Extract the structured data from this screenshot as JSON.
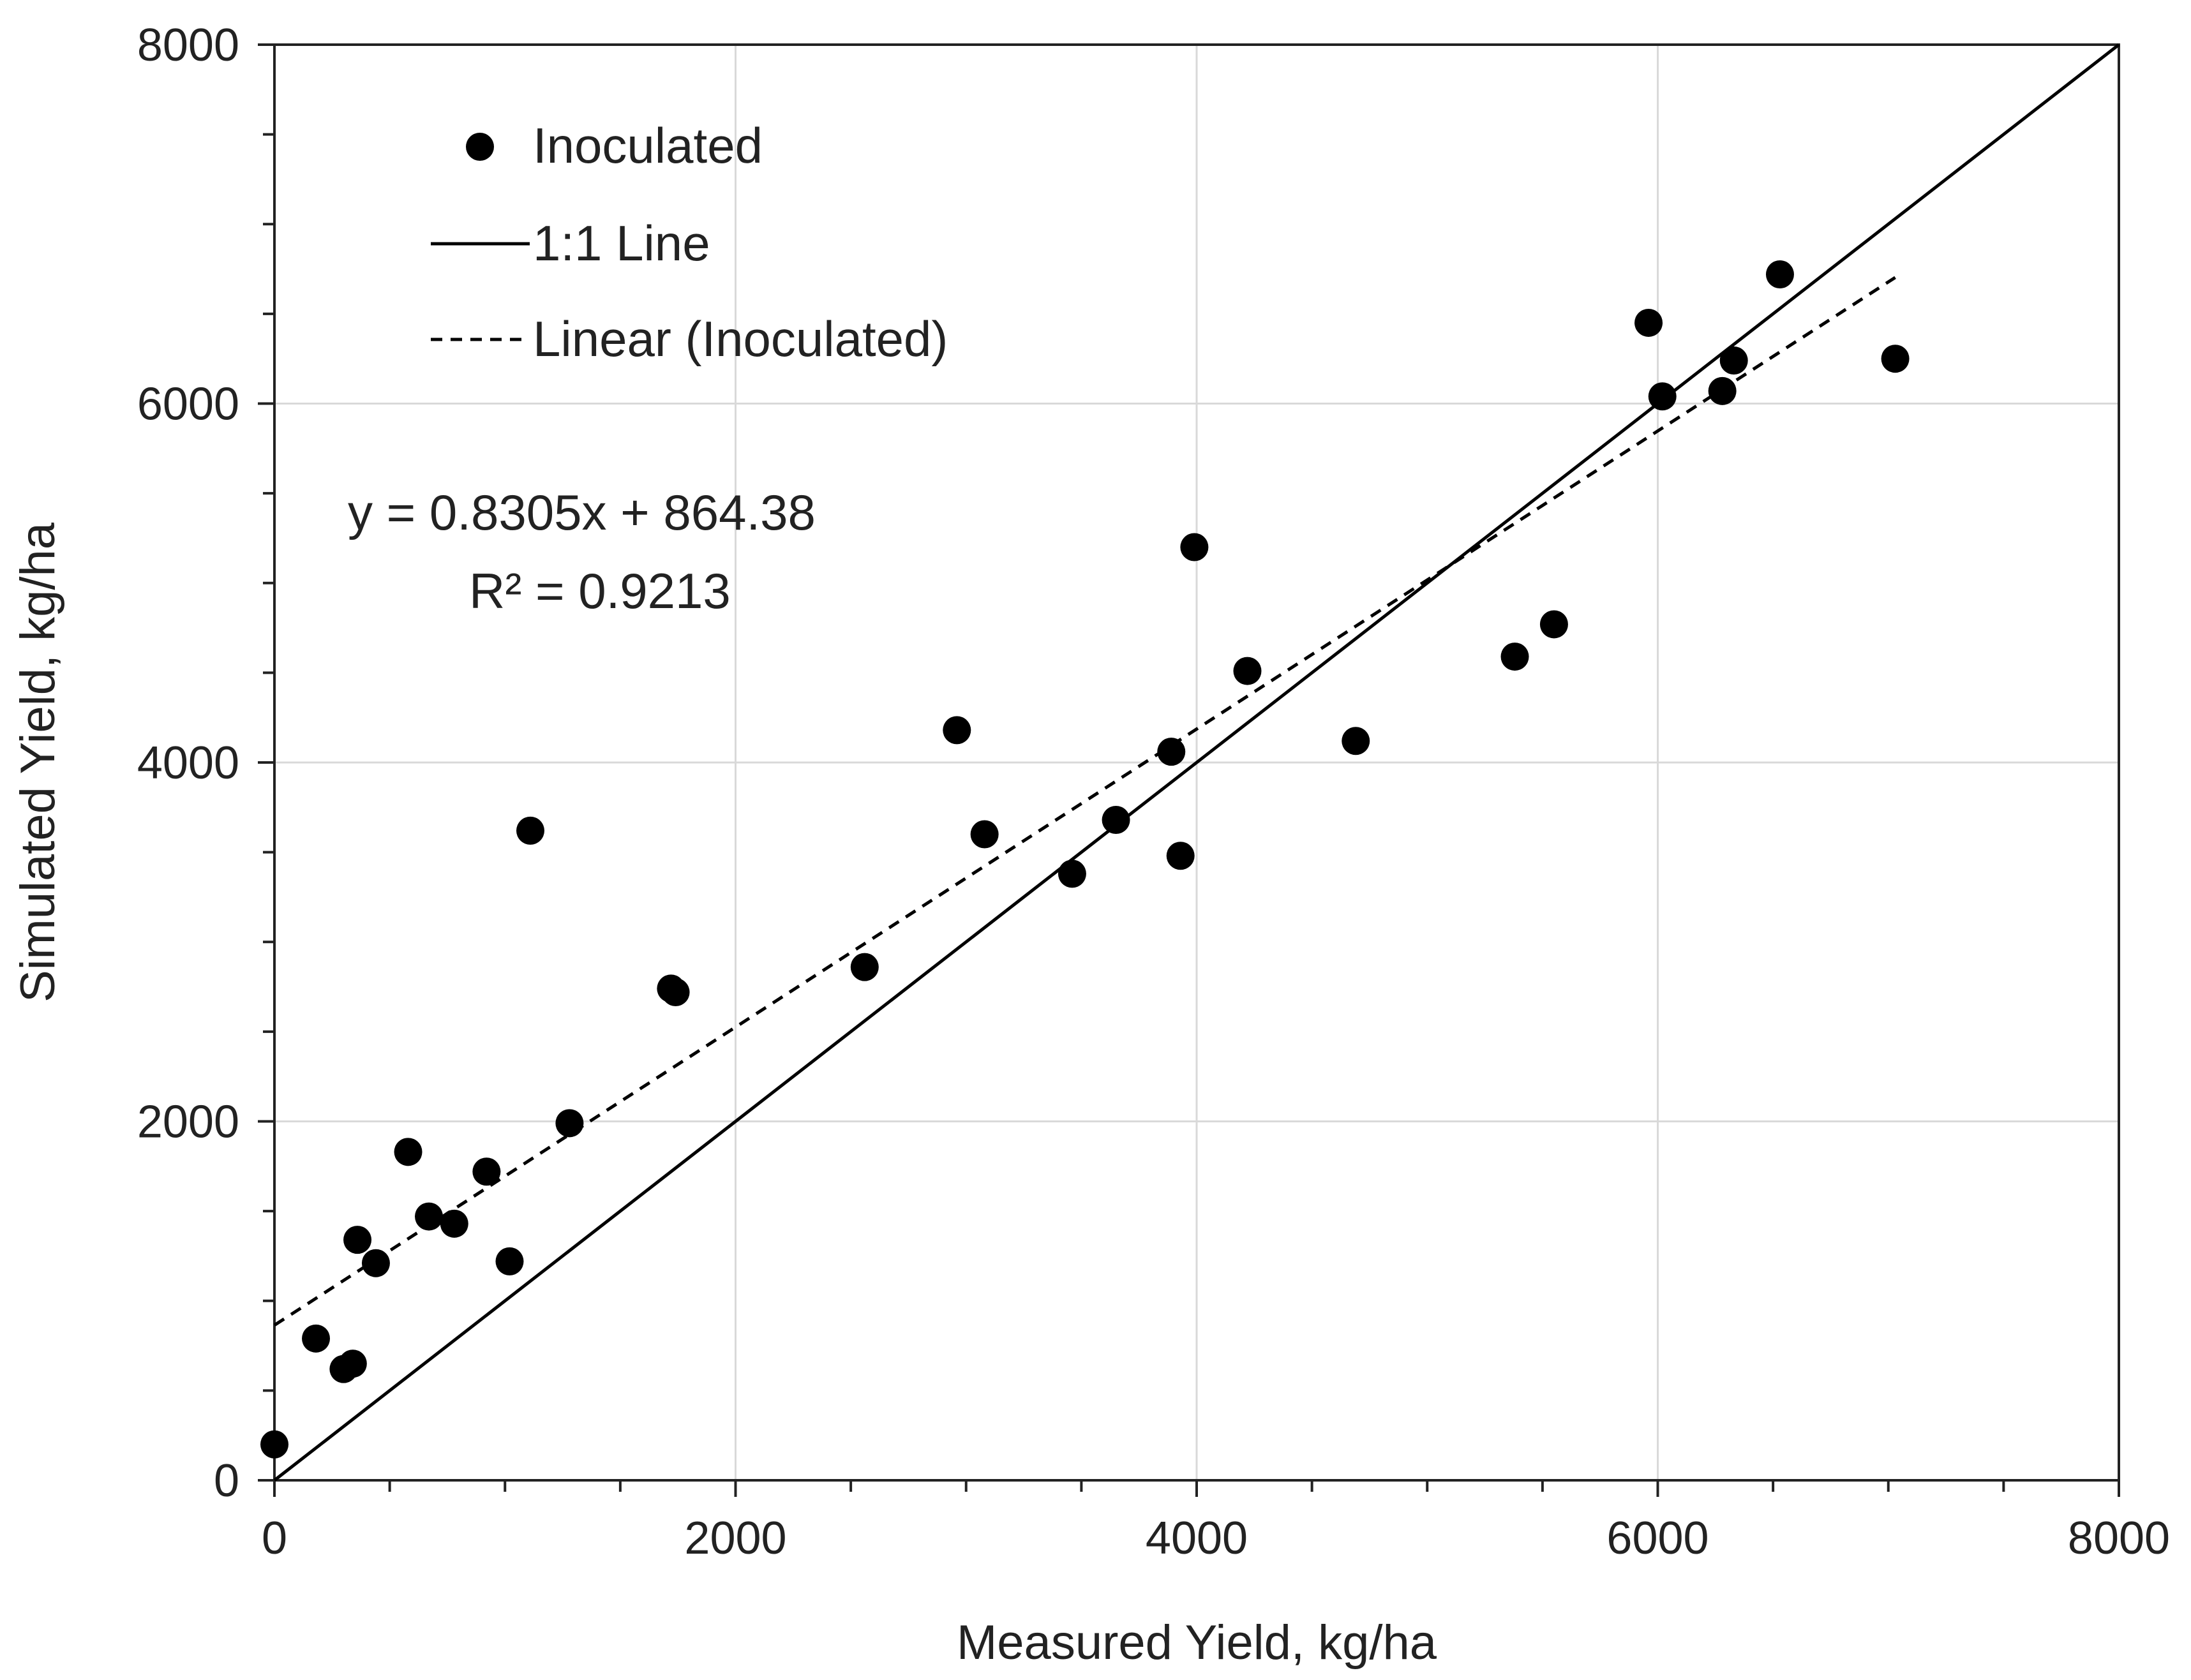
{
  "chart_data": {
    "type": "scatter",
    "title": "",
    "xlabel": "Measured Yield, kg/ha",
    "ylabel": "Simulated Yield, kg/ha",
    "xlim": [
      0,
      8000
    ],
    "ylim": [
      0,
      8000
    ],
    "major_step": 2000,
    "minor_step": 500,
    "x_tick_labels": [
      "0",
      "2000",
      "4000",
      "6000",
      "8000"
    ],
    "y_tick_labels": [
      "0",
      "2000",
      "4000",
      "6000",
      "8000"
    ],
    "grid": true,
    "legend_position": "top-left",
    "series": [
      {
        "name": "Inoculated",
        "kind": "scatter",
        "points": [
          [
            0,
            200
          ],
          [
            180,
            790
          ],
          [
            300,
            620
          ],
          [
            340,
            650
          ],
          [
            360,
            1340
          ],
          [
            440,
            1210
          ],
          [
            580,
            1830
          ],
          [
            670,
            1470
          ],
          [
            780,
            1430
          ],
          [
            920,
            1720
          ],
          [
            1020,
            1220
          ],
          [
            1110,
            3620
          ],
          [
            1280,
            1990
          ],
          [
            1720,
            2740
          ],
          [
            1740,
            2720
          ],
          [
            2560,
            2860
          ],
          [
            2960,
            4180
          ],
          [
            3080,
            3600
          ],
          [
            3460,
            3380
          ],
          [
            3650,
            3680
          ],
          [
            3890,
            4060
          ],
          [
            3930,
            3480
          ],
          [
            3990,
            5200
          ],
          [
            4220,
            4510
          ],
          [
            4690,
            4120
          ],
          [
            5380,
            4590
          ],
          [
            5550,
            4770
          ],
          [
            5960,
            6450
          ],
          [
            6020,
            6040
          ],
          [
            6280,
            6070
          ],
          [
            6330,
            6240
          ],
          [
            6530,
            6720
          ],
          [
            7030,
            6250
          ]
        ]
      },
      {
        "name": "1:1 Line",
        "kind": "line",
        "points": [
          [
            0,
            0
          ],
          [
            8000,
            8000
          ]
        ]
      },
      {
        "name": "Linear (Inoculated)",
        "kind": "trendline",
        "slope": 0.8305,
        "intercept": 864.38,
        "x_range": [
          0,
          7030
        ]
      }
    ],
    "annotations": {
      "equation": "y = 0.8305x + 864.38",
      "r_squared": "R² = 0.9213"
    }
  }
}
